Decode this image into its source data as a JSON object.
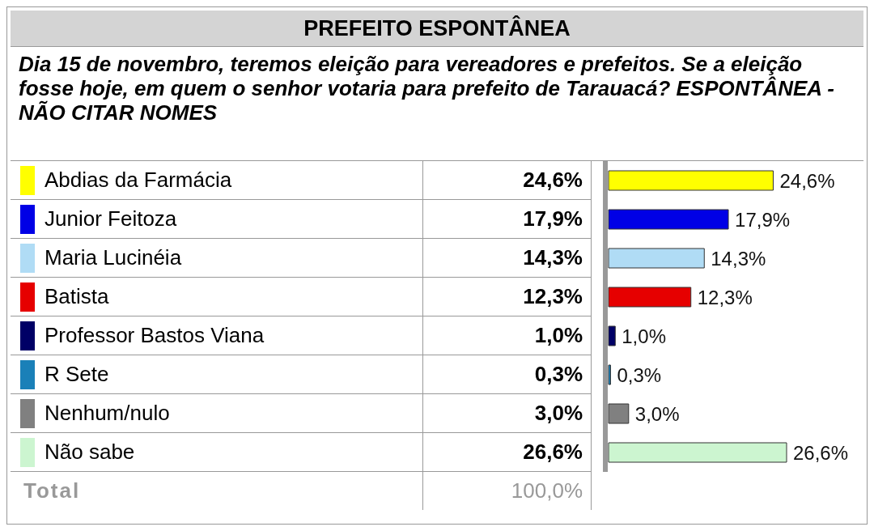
{
  "chart_data": {
    "type": "bar",
    "orientation": "horizontal",
    "title": "PREFEITO ESPONTÂNEA",
    "subtitle": "Dia 15 de novembro, teremos eleição para vereadores e prefeitos. Se a eleição fosse hoje, em quem o senhor votaria para prefeito de Tarauacá? ESPONTÂNEA - NÃO CITAR NOMES",
    "categories": [
      "Abdias da Farmácia",
      "Junior Feitoza",
      "Maria Lucinéia",
      "Batista",
      "Professor Bastos Viana",
      "R Sete",
      "Nenhum/nulo",
      "Não sabe"
    ],
    "values": [
      24.6,
      17.9,
      14.3,
      12.3,
      1.0,
      0.3,
      3.0,
      26.6
    ],
    "colors": [
      "#ffff00",
      "#0000e6",
      "#b0dcf5",
      "#e60000",
      "#000066",
      "#1a80b8",
      "#808080",
      "#ccf5d0"
    ],
    "value_labels": [
      "24,6%",
      "17,9%",
      "14,3%",
      "12,3%",
      "1,0%",
      "0,3%",
      "3,0%",
      "26,6%"
    ],
    "annotations": [
      "Total",
      "100,0%"
    ]
  }
}
